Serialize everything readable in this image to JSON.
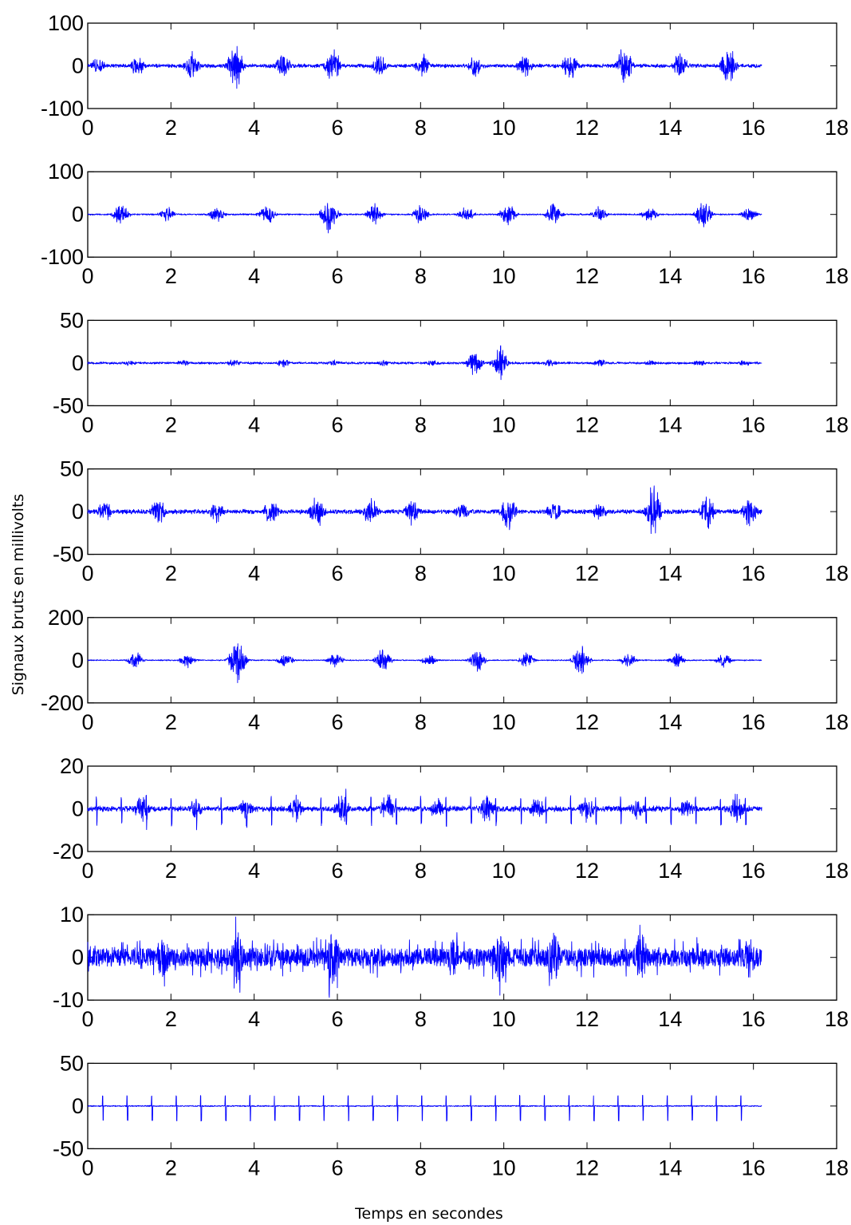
{
  "figure": {
    "ylabel": "Signaux bruts en millivolts",
    "xlabel": "Temps en secondes",
    "trace_color": "#0000ff"
  },
  "chart_data": [
    {
      "type": "line",
      "xlim": [
        0,
        18
      ],
      "ylim": [
        -100,
        100
      ],
      "xticks": [
        "0",
        "2",
        "4",
        "6",
        "8",
        "10",
        "12",
        "14",
        "16",
        "18"
      ],
      "yticks": [
        "100",
        "0",
        "-100"
      ],
      "duration": 16.2,
      "style": "bursts",
      "baseline_noise": 5,
      "burst_times": [
        0.25,
        1.2,
        2.5,
        3.55,
        4.7,
        5.9,
        7.0,
        8.05,
        9.3,
        10.5,
        11.6,
        12.9,
        14.25,
        15.4
      ],
      "burst_peaks": [
        22,
        28,
        40,
        60,
        32,
        45,
        30,
        32,
        30,
        30,
        40,
        55,
        35,
        52
      ]
    },
    {
      "type": "line",
      "xlim": [
        0,
        18
      ],
      "ylim": [
        -100,
        100
      ],
      "xticks": [
        "0",
        "2",
        "4",
        "6",
        "8",
        "10",
        "12",
        "14",
        "16",
        "18"
      ],
      "yticks": [
        "100",
        "0",
        "-100"
      ],
      "duration": 16.2,
      "style": "bursts",
      "baseline_noise": 2,
      "burst_times": [
        0.8,
        1.9,
        3.1,
        4.3,
        5.8,
        6.9,
        8.0,
        9.1,
        10.1,
        11.2,
        12.3,
        13.5,
        14.8,
        15.9
      ],
      "burst_peaks": [
        28,
        20,
        22,
        28,
        55,
        28,
        25,
        22,
        30,
        28,
        20,
        22,
        45,
        18
      ]
    },
    {
      "type": "line",
      "xlim": [
        0,
        18
      ],
      "ylim": [
        -50,
        50
      ],
      "xticks": [
        "0",
        "2",
        "4",
        "6",
        "8",
        "10",
        "12",
        "14",
        "16",
        "18"
      ],
      "yticks": [
        "50",
        "0",
        "-50"
      ],
      "duration": 16.2,
      "style": "bursts",
      "baseline_noise": 1.5,
      "burst_times": [
        1.0,
        2.3,
        3.5,
        4.7,
        5.9,
        7.1,
        8.3,
        9.3,
        9.9,
        11.1,
        12.3,
        13.5,
        14.7,
        15.8
      ],
      "burst_peaks": [
        4,
        4,
        5,
        6,
        4,
        4,
        4,
        18,
        22,
        5,
        5,
        4,
        4,
        4
      ]
    },
    {
      "type": "line",
      "xlim": [
        0,
        18
      ],
      "ylim": [
        -50,
        50
      ],
      "xticks": [
        "0",
        "2",
        "4",
        "6",
        "8",
        "10",
        "12",
        "14",
        "16",
        "18"
      ],
      "yticks": [
        "50",
        "0",
        "-50"
      ],
      "duration": 16.2,
      "style": "bursts",
      "baseline_noise": 3,
      "burst_times": [
        0.4,
        1.7,
        3.1,
        4.4,
        5.5,
        6.8,
        7.8,
        9.0,
        10.1,
        11.2,
        12.3,
        13.6,
        14.9,
        15.9
      ],
      "burst_peaks": [
        15,
        18,
        15,
        18,
        22,
        18,
        18,
        12,
        25,
        15,
        12,
        35,
        22,
        22
      ]
    },
    {
      "type": "line",
      "xlim": [
        0,
        18
      ],
      "ylim": [
        -200,
        200
      ],
      "xticks": [
        "0",
        "2",
        "4",
        "6",
        "8",
        "10",
        "12",
        "14",
        "16",
        "18"
      ],
      "yticks": [
        "200",
        "0",
        "-200"
      ],
      "duration": 16.2,
      "style": "bursts",
      "baseline_noise": 3,
      "burst_times": [
        1.15,
        2.4,
        3.6,
        4.75,
        5.95,
        7.1,
        8.2,
        9.35,
        10.55,
        11.85,
        13.0,
        14.15,
        15.3
      ],
      "burst_peaks": [
        45,
        40,
        130,
        40,
        40,
        60,
        30,
        60,
        40,
        95,
        40,
        40,
        40
      ]
    },
    {
      "type": "line",
      "xlim": [
        0,
        18
      ],
      "ylim": [
        -20,
        20
      ],
      "xticks": [
        "0",
        "2",
        "4",
        "6",
        "8",
        "10",
        "12",
        "14",
        "16",
        "18"
      ],
      "yticks": [
        "20",
        "0",
        "-20"
      ],
      "duration": 16.2,
      "style": "bursts_spikes",
      "baseline_noise": 1.5,
      "burst_times": [
        1.3,
        2.6,
        3.8,
        5.0,
        6.1,
        7.2,
        8.4,
        9.6,
        10.8,
        12.0,
        13.2,
        14.4,
        15.6
      ],
      "burst_peaks": [
        7,
        5,
        6,
        7,
        9,
        8,
        6,
        8,
        6,
        7,
        6,
        6,
        8
      ],
      "spike_period": 0.6,
      "spike_amp": 7
    },
    {
      "type": "line",
      "xlim": [
        0,
        18
      ],
      "ylim": [
        -10,
        10
      ],
      "xticks": [
        "0",
        "2",
        "4",
        "6",
        "8",
        "10",
        "12",
        "14",
        "16",
        "18"
      ],
      "yticks": [
        "10",
        "0",
        "-10"
      ],
      "duration": 16.2,
      "style": "dense",
      "baseline_noise": 3,
      "burst_times": [
        1.8,
        3.6,
        5.9,
        8.8,
        9.9,
        11.2,
        13.3,
        15.9
      ],
      "burst_peaks": [
        7,
        8,
        9,
        6,
        9,
        8,
        8,
        7
      ]
    },
    {
      "type": "line",
      "xlim": [
        0,
        18
      ],
      "ylim": [
        -50,
        50
      ],
      "xticks": [
        "0",
        "2",
        "4",
        "6",
        "8",
        "10",
        "12",
        "14",
        "16",
        "18"
      ],
      "yticks": [
        "50",
        "0",
        "-50"
      ],
      "duration": 16.2,
      "style": "ecg",
      "baseline_noise": 0.8,
      "spike_period": 0.59,
      "spike_start": 0.35,
      "spike_amp": 17
    }
  ]
}
